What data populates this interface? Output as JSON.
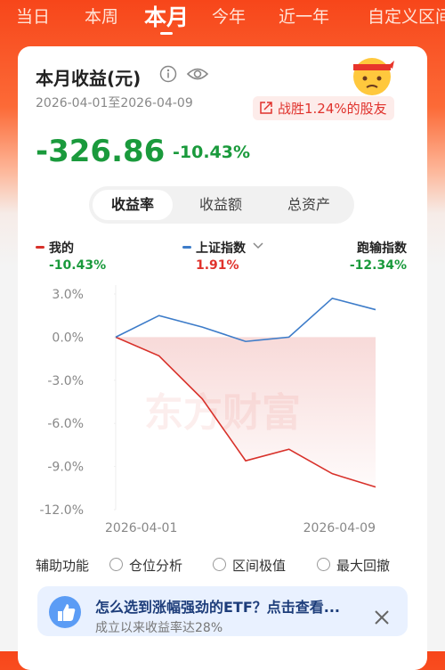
{
  "tabs": [
    "当日",
    "本周",
    "本月",
    "今年",
    "近一年",
    "自定义区间"
  ],
  "active_tab_index": 2,
  "card": {
    "title": "本月收益(元)",
    "date_range": "2026-04-01至2026-04-09",
    "badge": "战胜1.24%的股友",
    "total": "-326.86",
    "total_pct": "-10.43%",
    "segments": [
      "收益率",
      "收益额",
      "总资产"
    ],
    "active_segment_index": 0
  },
  "chart_data": {
    "type": "line",
    "watermark": "东方财富",
    "categories": [
      "2026-04-01",
      null,
      null,
      null,
      null,
      null,
      "2026-04-09"
    ],
    "series": [
      {
        "name": "我的",
        "color": "#d8312a",
        "values": [
          0,
          -1.3,
          -4.3,
          -8.6,
          -7.8,
          -9.5,
          -10.43
        ],
        "change_label": "-10.43%"
      },
      {
        "name": "上证指数",
        "color": "#3d7cc9",
        "values": [
          0,
          1.5,
          0.7,
          -0.3,
          0,
          2.7,
          1.91
        ],
        "change_label": "1.91%"
      }
    ],
    "extra_stat": {
      "name": "跑输指数",
      "value_label": "-12.34%"
    },
    "ylim": [
      -12,
      3
    ],
    "yticks": [
      {
        "value": 3,
        "label": "3.0%"
      },
      {
        "value": 0,
        "label": "0.0%"
      },
      {
        "value": -3,
        "label": "-3.0%"
      },
      {
        "value": -6,
        "label": "-6.0%"
      },
      {
        "value": -9,
        "label": "-9.0%"
      },
      {
        "value": -12,
        "label": "-12.0%"
      }
    ]
  },
  "assist": {
    "label": "辅助功能",
    "options": [
      "仓位分析",
      "区间极值",
      "最大回撤"
    ]
  },
  "promo": {
    "title": "怎么选到涨幅强劲的ETF？点击查看...",
    "subtitle": "成立以来收益率达28%"
  }
}
